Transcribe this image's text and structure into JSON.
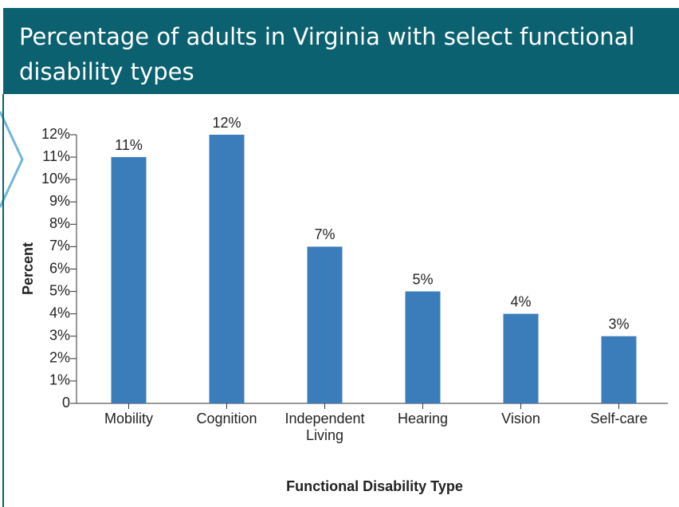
{
  "chart_data": {
    "type": "bar",
    "title": "Percentage of adults in Virginia with select functional disability types",
    "x_label": "Functional Disability Type",
    "y_label": "Percent",
    "categories": [
      "Mobility",
      "Cognition",
      "Independent Living",
      "Hearing",
      "Vision",
      "Self-care"
    ],
    "values": [
      11,
      12,
      7,
      5,
      4,
      3
    ],
    "value_labels": [
      "11%",
      "12%",
      "7%",
      "5%",
      "4%",
      "3%"
    ],
    "color": "#3b7dbb",
    "ylim": [
      0,
      12
    ],
    "yticks": [
      0,
      {
        "value": 1,
        "label": "1%"
      },
      {
        "value": 2,
        "label": "2%"
      },
      {
        "value": 3,
        "label": "3%"
      },
      {
        "value": 4,
        "label": "4%"
      },
      {
        "value": 5,
        "label": "5%"
      },
      {
        "value": 6,
        "label": "6%"
      },
      {
        "value": 7,
        "label": "7%"
      },
      {
        "value": 8,
        "label": "8%"
      },
      {
        "value": 9,
        "label": "9%"
      },
      {
        "value": 10,
        "label": "10%"
      },
      {
        "value": 11,
        "label": "11%"
      },
      {
        "value": 12,
        "label": "12%"
      }
    ],
    "grid": false
  }
}
